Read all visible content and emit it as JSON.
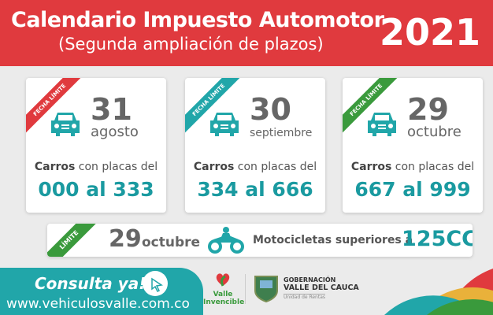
{
  "header": {
    "title": "Calendario Impuesto Automotor",
    "subtitle": "(Segunda ampliación de plazos)",
    "year": "2021"
  },
  "cards": [
    {
      "ribbon": "FECHA LÍMITE",
      "ribbon_color": "#e03a3e",
      "day": "31",
      "month": "agosto",
      "label_bold": "Carros",
      "label_rest": " con placas del",
      "range": "000 al 333"
    },
    {
      "ribbon": "FECHA LÍMITE",
      "ribbon_color": "#21a6a9",
      "day": "30",
      "month": "septiembre",
      "label_bold": "Carros",
      "label_rest": " con placas del",
      "range": "334 al 666"
    },
    {
      "ribbon": "FECHA LÍMITE",
      "ribbon_color": "#3a9a3c",
      "day": "29",
      "month": "octubre",
      "label_bold": "Carros",
      "label_rest": " con placas del",
      "range": "667 al 999"
    }
  ],
  "moto": {
    "ribbon": "LÍMITE",
    "day": "29",
    "month": "octubre",
    "text": "Motocicletas superiores a",
    "cc": "125CC"
  },
  "footer": {
    "cta": "Consulta ya!",
    "url": "www.vehiculosvalle.com.co",
    "logo1": "Valle Invencible",
    "logo2_line1": "GOBERNACIÓN",
    "logo2_line2": "VALLE DEL CAUCA",
    "logo2_line3": "Unidad de Rentas"
  },
  "colors": {
    "red": "#e03a3e",
    "teal": "#21a6a9",
    "green": "#3a9a3c",
    "yellow": "#e9b13a"
  }
}
